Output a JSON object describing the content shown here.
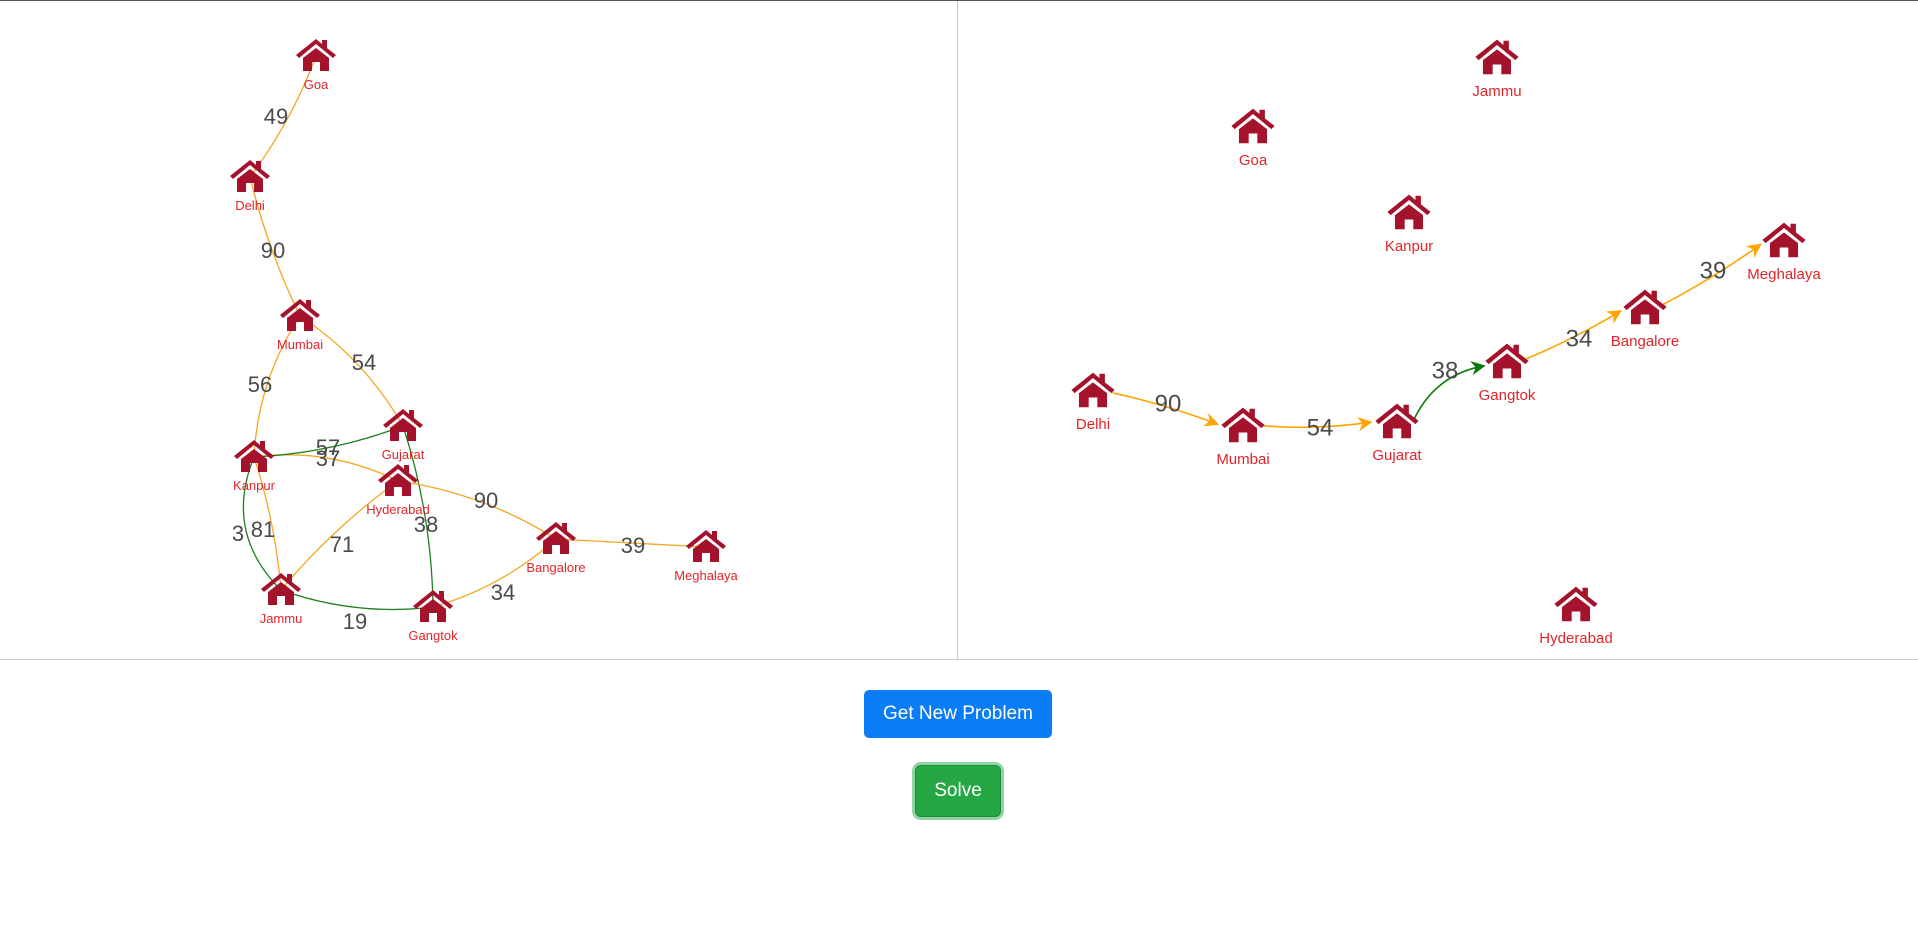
{
  "buttons": {
    "new_problem": "Get New Problem",
    "solve": "Solve"
  },
  "colors": {
    "house": "#a5122b",
    "label": "#e0252a",
    "edge_default": "#f5a623",
    "edge_highlight": "#1d7f1d",
    "path_arrow": "#ffa500"
  },
  "problem_graph": {
    "cities": [
      "Goa",
      "Delhi",
      "Mumbai",
      "Gujarat",
      "Kanpur",
      "Hyderabad",
      "Bangalore",
      "Meghalaya",
      "Jammu",
      "Gangtok"
    ],
    "edges": [
      {
        "from": "Goa",
        "to": "Delhi",
        "weight": "49",
        "highlight": false
      },
      {
        "from": "Delhi",
        "to": "Mumbai",
        "weight": "90",
        "highlight": false
      },
      {
        "from": "Mumbai",
        "to": "Kanpur",
        "weight": "56",
        "highlight": false
      },
      {
        "from": "Mumbai",
        "to": "Gujarat",
        "weight": "54",
        "highlight": false
      },
      {
        "from": "Kanpur",
        "to": "Hyderabad",
        "weight": "57",
        "highlight": false
      },
      {
        "from": "Kanpur",
        "to": "Gujarat",
        "weight": "37",
        "highlight": true
      },
      {
        "from": "Kanpur",
        "to": "Jammu",
        "weight": "3",
        "highlight": true
      },
      {
        "from": "Kanpur",
        "to": "Jammu",
        "weight": "81",
        "highlight": false
      },
      {
        "from": "Gujarat",
        "to": "Gangtok",
        "weight": "38",
        "highlight": true
      },
      {
        "from": "Hyderabad",
        "to": "Bangalore",
        "weight": "90",
        "highlight": false
      },
      {
        "from": "Hyderabad",
        "to": "Jammu",
        "weight": "71",
        "highlight": false
      },
      {
        "from": "Bangalore",
        "to": "Meghalaya",
        "weight": "39",
        "highlight": false
      },
      {
        "from": "Gangtok",
        "to": "Bangalore",
        "weight": "34",
        "highlight": false
      },
      {
        "from": "Jammu",
        "to": "Gangtok",
        "weight": "19",
        "highlight": true
      }
    ]
  },
  "solution_graph": {
    "cities": [
      "Jammu",
      "Goa",
      "Kanpur",
      "Meghalaya",
      "Delhi",
      "Mumbai",
      "Gujarat",
      "Gangtok",
      "Bangalore",
      "Hyderabad"
    ],
    "path": [
      {
        "from": "Delhi",
        "to": "Mumbai",
        "weight": "90",
        "highlight": false
      },
      {
        "from": "Mumbai",
        "to": "Gujarat",
        "weight": "54",
        "highlight": false
      },
      {
        "from": "Gujarat",
        "to": "Gangtok",
        "weight": "38",
        "highlight": true
      },
      {
        "from": "Gangtok",
        "to": "Bangalore",
        "weight": "34",
        "highlight": false
      },
      {
        "from": "Bangalore",
        "to": "Meghalaya",
        "weight": "39",
        "highlight": false
      }
    ]
  }
}
